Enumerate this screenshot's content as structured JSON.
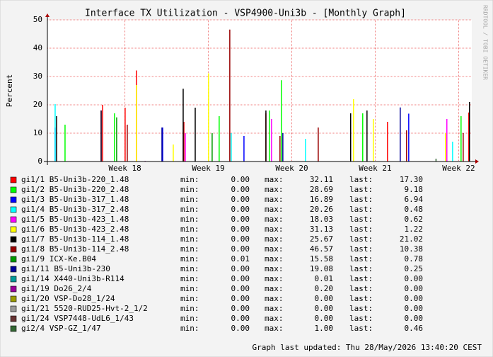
{
  "chart_data": {
    "type": "impulse",
    "title": "Interface TX Utilization - VSP4900-Uni3b - [Monthly Graph]",
    "y_label": "Percent",
    "watermark": "RRDTOOL / TOBI OETIKER",
    "footer": "Graph last updated: Thu 28/May/2026 13:40:20 CEST",
    "xlim": [
      0,
      35.6
    ],
    "xticks": [
      {
        "value": 6.5,
        "label": "Week 18"
      },
      {
        "value": 13.5,
        "label": "Week 19"
      },
      {
        "value": 20.5,
        "label": "Week 20"
      },
      {
        "value": 27.5,
        "label": "Week 21"
      },
      {
        "value": 34.5,
        "label": "Week 22"
      }
    ],
    "ylim": [
      0,
      50
    ],
    "yticks": [
      0,
      10,
      20,
      30,
      40,
      50
    ],
    "grid": true,
    "stat_labels": [
      "min:",
      "max:",
      "last:"
    ],
    "series": [
      {
        "name": "gi1/1 B5-Uni3b-220_1.48",
        "color": "#ff0000",
        "stats": [
          "0.00",
          "32.11",
          "17.30"
        ],
        "x": [
          4.63,
          6.52,
          7.47,
          11.45,
          18.33,
          25.44,
          28.53,
          35.35
        ],
        "values": [
          20,
          19,
          32.11,
          14,
          17,
          14,
          14,
          17.3
        ]
      },
      {
        "name": "gi1/2 B5-Uni3b-220_2.48",
        "color": "#00ff00",
        "stats": [
          "0.00",
          "28.69",
          "9.18"
        ],
        "x": [
          1.48,
          5.63,
          14.41,
          18.62,
          19.63,
          26.45,
          34.7
        ],
        "values": [
          13,
          17,
          16,
          18,
          28.69,
          17,
          16
        ]
      },
      {
        "name": "gi1/3 B5-Uni3b-317_1.48",
        "color": "#0000ff",
        "stats": [
          "0.00",
          "16.89",
          "6.94"
        ],
        "x": [
          0.65,
          9.67,
          16.49,
          30.31
        ],
        "values": [
          12,
          12,
          9,
          16.89
        ]
      },
      {
        "name": "gi1/4 B5-Uni3b-317_2.48",
        "color": "#00ffff",
        "stats": [
          "0.00",
          "20.26",
          "0.48"
        ],
        "x": [
          0.65,
          15.42,
          21.65,
          33.99
        ],
        "values": [
          20.26,
          10,
          8,
          7
        ]
      },
      {
        "name": "gi1/5 B5-Uni3b-423_1.48",
        "color": "#ff00ff",
        "stats": [
          "0.00",
          "18.03",
          "0.62"
        ],
        "x": [
          4.51,
          11.57,
          18.8,
          33.51
        ],
        "values": [
          18.03,
          10,
          15,
          15
        ]
      },
      {
        "name": "gi1/6 B5-Uni3b-423_2.48",
        "color": "#ffff00",
        "stats": [
          "0.00",
          "31.13",
          "1.22"
        ],
        "x": [
          7.47,
          10.56,
          13.52,
          25.68,
          27.34,
          33.39
        ],
        "values": [
          27,
          6,
          31.13,
          22,
          15,
          10
        ]
      },
      {
        "name": "gi1/7 B5-Uni3b-114_1.48",
        "color": "#000000",
        "stats": [
          "0.00",
          "25.67",
          "21.02"
        ],
        "x": [
          0.77,
          4.51,
          11.39,
          12.4,
          18.33,
          25.44,
          26.81,
          35.41
        ],
        "values": [
          16,
          18,
          25.67,
          19,
          18,
          17,
          18,
          21
        ]
      },
      {
        "name": "gi1/8 B5-Uni3b-114_2.48",
        "color": "#990000",
        "stats": [
          "0.00",
          "46.57",
          "10.38"
        ],
        "x": [
          6.7,
          15.3,
          19.51,
          22.72,
          30.13,
          34.88
        ],
        "values": [
          13,
          46.57,
          9,
          12,
          11,
          10
        ]
      },
      {
        "name": "gi1/9 ICX-Ke.B04",
        "color": "#009900",
        "stats": [
          "0.01",
          "15.58",
          "0.78"
        ],
        "x": [
          5.81,
          13.82
        ],
        "values": [
          15.58,
          10
        ]
      },
      {
        "name": "gi1/11 B5-Uni3b-230",
        "color": "#000099",
        "stats": [
          "0.00",
          "19.08",
          "0.25"
        ],
        "x": [
          9.61,
          19.75,
          29.6
        ],
        "values": [
          12,
          10,
          19.08
        ]
      },
      {
        "name": "gi1/14 X440-Uni3b-R114",
        "color": "#009999",
        "stats": [
          "0.00",
          "0.01",
          "0.00"
        ],
        "x": [
          7.9
        ],
        "values": [
          0.01
        ]
      },
      {
        "name": "gi1/19 Do26_2/4",
        "color": "#990099",
        "stats": [
          "0.00",
          "0.20",
          "0.00"
        ],
        "x": [
          8.2
        ],
        "values": [
          0.2
        ]
      },
      {
        "name": "gi1/20 VSP-Do28_1/24",
        "color": "#999900",
        "stats": [
          "0.00",
          "0.00",
          "0.00"
        ],
        "x": [],
        "values": []
      },
      {
        "name": "gi1/21 5520-RUD25-Hvt-2_1/2",
        "color": "#999999",
        "stats": [
          "0.00",
          "0.00",
          "0.00"
        ],
        "x": [],
        "values": []
      },
      {
        "name": "gi1/24 VSP7448-UdL6_1/43",
        "color": "#663333",
        "stats": [
          "0.00",
          "0.00",
          "0.00"
        ],
        "x": [],
        "values": []
      },
      {
        "name": "gi2/4 VSP-GZ_1/47",
        "color": "#336633",
        "stats": [
          "0.00",
          "1.00",
          "0.46"
        ],
        "x": [
          32.6
        ],
        "values": [
          1
        ]
      }
    ]
  }
}
